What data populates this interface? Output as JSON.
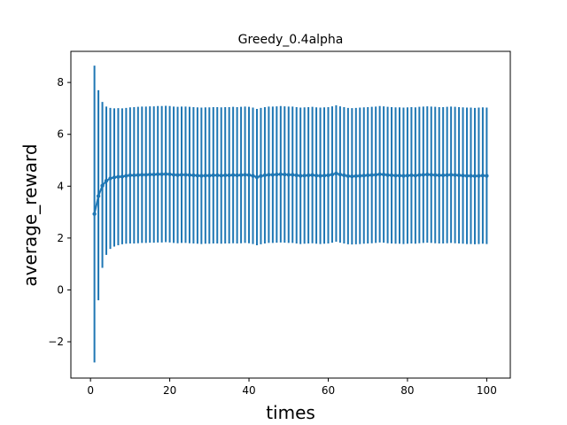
{
  "chart_data": {
    "type": "line",
    "title": "Greedy_0.4alpha",
    "xlabel": "times",
    "ylabel": "average_reward",
    "xlim": [
      -4.95,
      105.95
    ],
    "ylim": [
      -3.4,
      9.2
    ],
    "xticks": [
      0,
      20,
      40,
      60,
      80,
      100
    ],
    "yticks": [
      -2,
      0,
      2,
      4,
      6,
      8
    ],
    "ytick_labels": [
      "−2",
      "0",
      "2",
      "4",
      "6",
      "8"
    ],
    "grid": false,
    "legend": "none",
    "color": "#1f77b4",
    "series": [
      {
        "x_start": 1,
        "x_step": 1,
        "mean": [
          2.93,
          3.62,
          4.02,
          4.21,
          4.3,
          4.34,
          4.36,
          4.37,
          4.4,
          4.42,
          4.42,
          4.43,
          4.44,
          4.44,
          4.45,
          4.45,
          4.46,
          4.46,
          4.47,
          4.46,
          4.44,
          4.43,
          4.44,
          4.44,
          4.43,
          4.42,
          4.41,
          4.4,
          4.41,
          4.41,
          4.42,
          4.42,
          4.41,
          4.42,
          4.42,
          4.43,
          4.42,
          4.43,
          4.44,
          4.43,
          4.4,
          4.35,
          4.39,
          4.42,
          4.44,
          4.44,
          4.45,
          4.46,
          4.45,
          4.44,
          4.44,
          4.42,
          4.4,
          4.41,
          4.42,
          4.43,
          4.41,
          4.4,
          4.41,
          4.42,
          4.45,
          4.49,
          4.45,
          4.42,
          4.39,
          4.38,
          4.39,
          4.4,
          4.41,
          4.42,
          4.43,
          4.44,
          4.46,
          4.45,
          4.43,
          4.42,
          4.41,
          4.41,
          4.4,
          4.41,
          4.42,
          4.41,
          4.43,
          4.44,
          4.45,
          4.44,
          4.43,
          4.42,
          4.42,
          4.43,
          4.44,
          4.43,
          4.42,
          4.41,
          4.4,
          4.4,
          4.39,
          4.4,
          4.41,
          4.4
        ],
        "err_low": [
          -2.8,
          -0.4,
          0.85,
          1.35,
          1.58,
          1.67,
          1.72,
          1.76,
          1.78,
          1.79,
          1.79,
          1.8,
          1.81,
          1.81,
          1.82,
          1.82,
          1.83,
          1.83,
          1.84,
          1.83,
          1.81,
          1.8,
          1.81,
          1.81,
          1.8,
          1.79,
          1.78,
          1.77,
          1.78,
          1.78,
          1.79,
          1.79,
          1.78,
          1.79,
          1.79,
          1.8,
          1.79,
          1.8,
          1.81,
          1.8,
          1.77,
          1.72,
          1.76,
          1.79,
          1.81,
          1.81,
          1.82,
          1.83,
          1.82,
          1.81,
          1.81,
          1.79,
          1.77,
          1.78,
          1.79,
          1.8,
          1.78,
          1.77,
          1.78,
          1.79,
          1.82,
          1.86,
          1.82,
          1.79,
          1.76,
          1.75,
          1.76,
          1.77,
          1.78,
          1.79,
          1.8,
          1.81,
          1.83,
          1.82,
          1.8,
          1.79,
          1.78,
          1.78,
          1.77,
          1.78,
          1.79,
          1.78,
          1.8,
          1.81,
          1.82,
          1.81,
          1.8,
          1.79,
          1.79,
          1.8,
          1.81,
          1.8,
          1.79,
          1.78,
          1.77,
          1.77,
          1.76,
          1.77,
          1.78,
          1.77
        ],
        "err_high": [
          8.65,
          7.7,
          7.25,
          7.07,
          7.02,
          7.0,
          7.01,
          7.0,
          7.02,
          7.04,
          7.05,
          7.06,
          7.07,
          7.07,
          7.08,
          7.08,
          7.09,
          7.09,
          7.1,
          7.09,
          7.07,
          7.06,
          7.07,
          7.07,
          7.06,
          7.05,
          7.04,
          7.03,
          7.04,
          7.04,
          7.05,
          7.05,
          7.04,
          7.05,
          7.05,
          7.06,
          7.05,
          7.06,
          7.07,
          7.06,
          7.03,
          6.98,
          7.02,
          7.05,
          7.07,
          7.07,
          7.08,
          7.09,
          7.08,
          7.07,
          7.07,
          7.05,
          7.03,
          7.04,
          7.05,
          7.06,
          7.04,
          7.03,
          7.04,
          7.05,
          7.08,
          7.12,
          7.08,
          7.05,
          7.02,
          7.01,
          7.02,
          7.03,
          7.04,
          7.05,
          7.06,
          7.07,
          7.09,
          7.08,
          7.06,
          7.05,
          7.04,
          7.04,
          7.03,
          7.04,
          7.05,
          7.04,
          7.06,
          7.07,
          7.08,
          7.07,
          7.06,
          7.05,
          7.05,
          7.06,
          7.07,
          7.06,
          7.05,
          7.04,
          7.03,
          7.03,
          7.02,
          7.03,
          7.04,
          7.03
        ]
      }
    ]
  }
}
